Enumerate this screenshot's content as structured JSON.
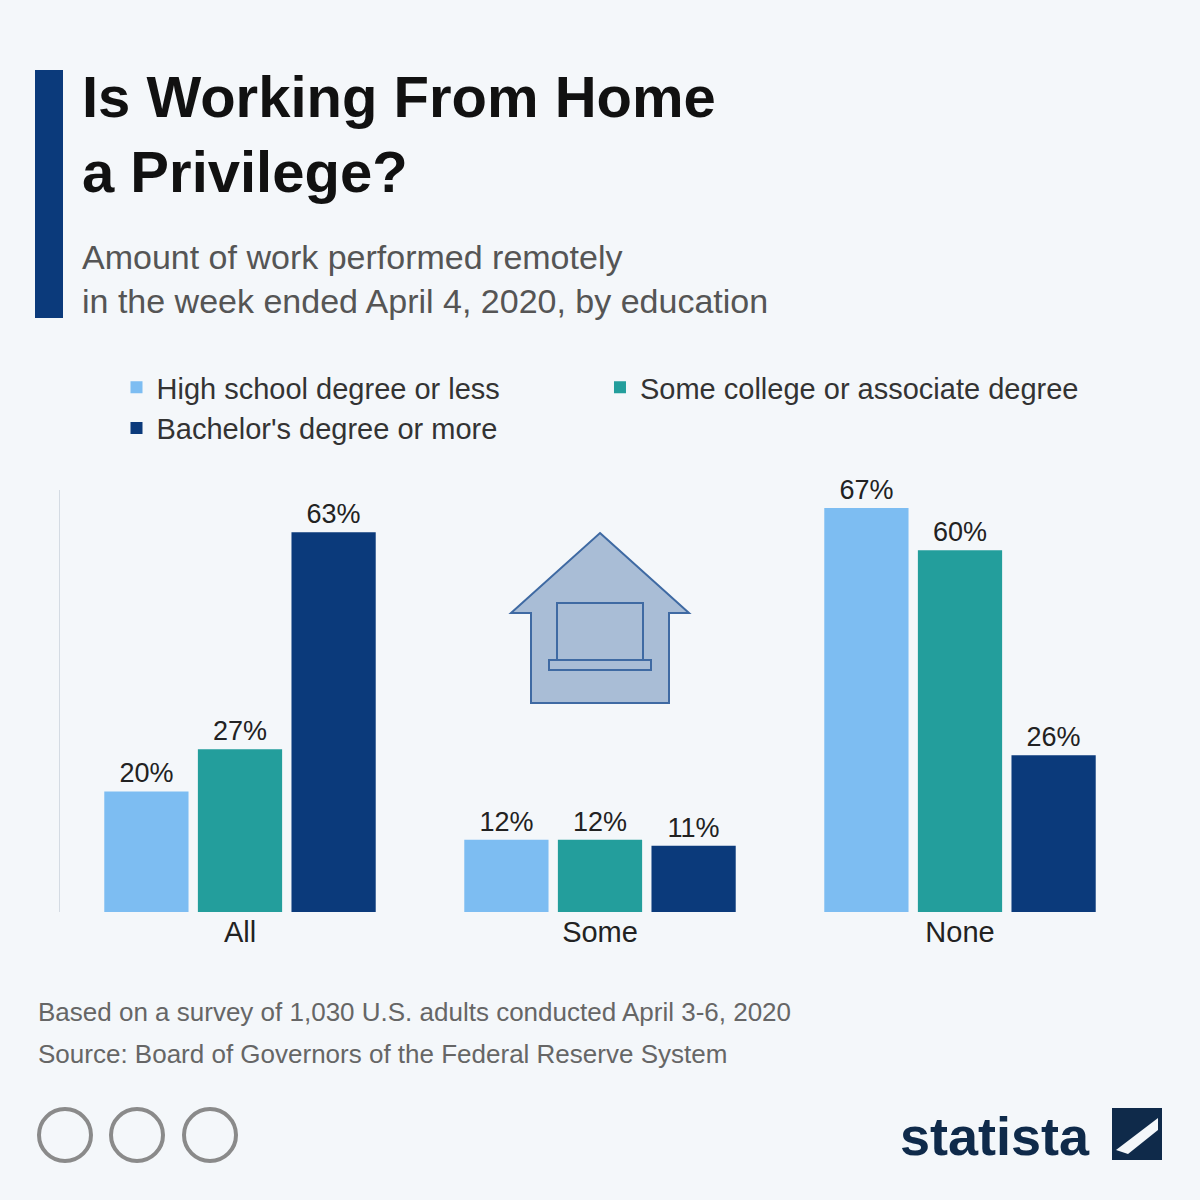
{
  "chart_data": {
    "type": "bar",
    "title": "Is Working From Home\na Privilege?",
    "subtitle": "Amount of work performed remotely\nin the week ended April 4, 2020, by education",
    "categories": [
      "All",
      "Some",
      "None"
    ],
    "series": [
      {
        "name": "High school degree or less",
        "color": "#7dbdf2",
        "values": [
          20,
          12,
          67
        ],
        "value_labels": [
          "20%",
          "12%",
          "67%"
        ]
      },
      {
        "name": "Some college or associate degree",
        "color": "#239e9c",
        "values": [
          27,
          12,
          60
        ],
        "value_labels": [
          "27%",
          "12%",
          "60%"
        ]
      },
      {
        "name": "Bachelor's degree or more",
        "color": "#0b3a7b",
        "values": [
          63,
          11,
          26
        ],
        "value_labels": [
          "63%",
          "11%",
          "26%"
        ]
      }
    ],
    "ylim": [
      0,
      70
    ],
    "yticks": [],
    "grid": false,
    "legend": "top",
    "data_labels": true,
    "tick_labels": "x",
    "note": "Based on a survey of 1,030 U.S. adults conducted April 3-6, 2020",
    "source": "Source: Board of Governors of the Federal Reserve System",
    "brand": "statista"
  }
}
